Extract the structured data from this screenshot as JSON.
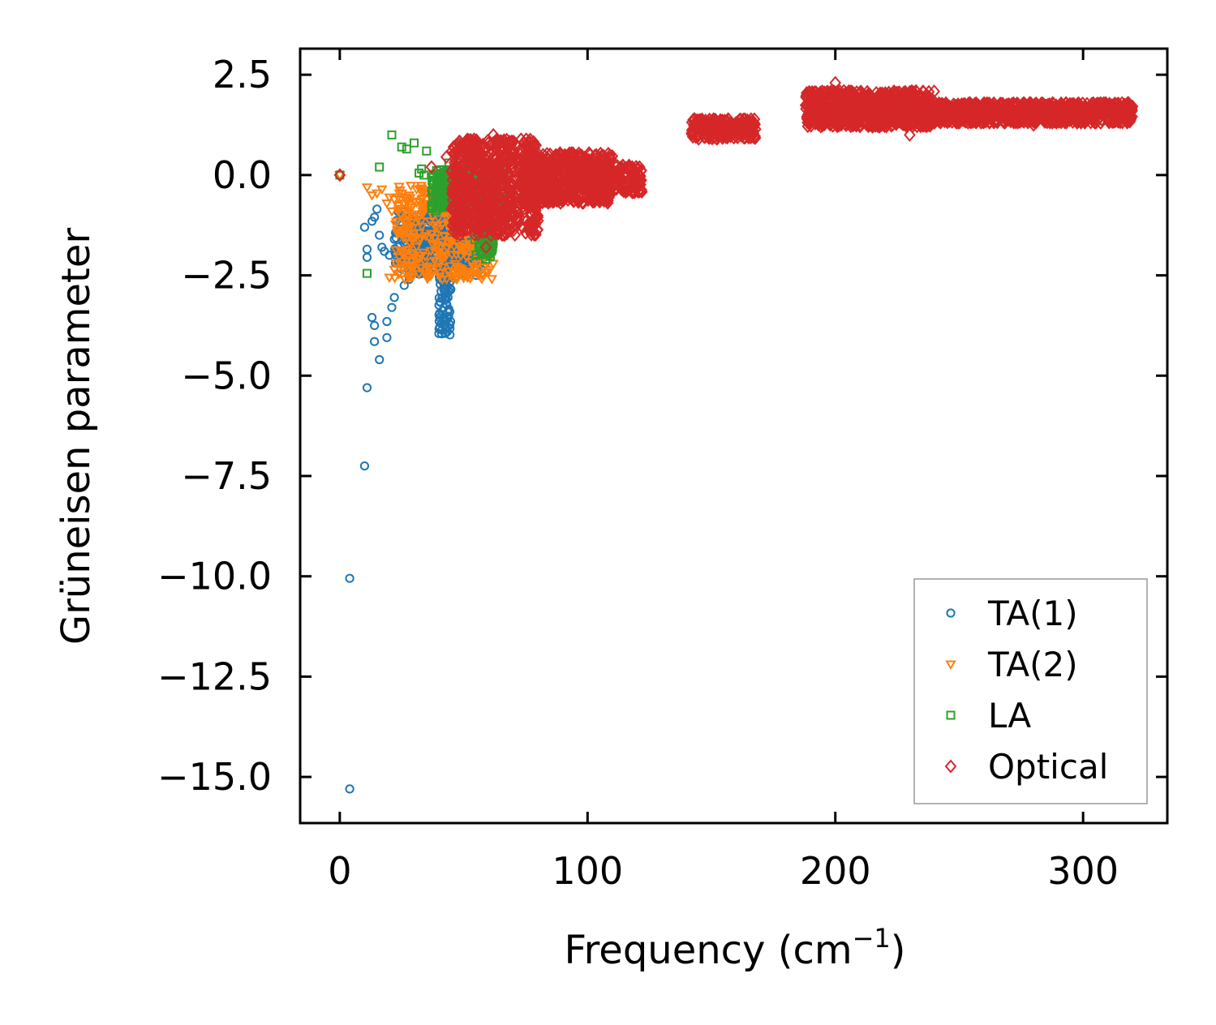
{
  "chart_data": {
    "type": "scatter",
    "title": "",
    "xlabel": "Frequency (cm",
    "xlabel_sup": "−1",
    "xlabel_end": ")",
    "ylabel": "Grüneisen parameter",
    "xlim": [
      -16,
      334
    ],
    "ylim": [
      -16.15,
      3.15
    ],
    "xticks": [
      0,
      100,
      200,
      300
    ],
    "xtick_labels": [
      "0",
      "100",
      "200",
      "300"
    ],
    "yticks": [
      2.5,
      0.0,
      -2.5,
      -5.0,
      -7.5,
      -10.0,
      -12.5,
      -15.0
    ],
    "ytick_labels": [
      "2.5",
      "0.0",
      "−2.5",
      "−5.0",
      "−7.5",
      "−10.0",
      "−12.5",
      "−15.0"
    ],
    "legend": {
      "position": "lower-right",
      "entries": [
        "TA(1)",
        "TA(2)",
        "LA",
        "Optical"
      ]
    },
    "series": [
      {
        "name": "TA(1)",
        "marker": "circle",
        "color": "#1f77b4",
        "points": [
          [
            0,
            0
          ],
          [
            4,
            -15.3
          ],
          [
            4,
            -10.05
          ],
          [
            10,
            -7.25
          ],
          [
            11,
            -5.3
          ],
          [
            16,
            -4.6
          ],
          [
            14,
            -4.15
          ],
          [
            19,
            -4.05
          ],
          [
            14,
            -3.75
          ],
          [
            19,
            -3.65
          ],
          [
            13,
            -3.55
          ],
          [
            21,
            -3.3
          ],
          [
            22,
            -3.05
          ],
          [
            26,
            -2.75
          ],
          [
            28,
            -2.6
          ],
          [
            29,
            -2.45
          ],
          [
            10,
            -1.3
          ],
          [
            11,
            -1.85
          ],
          [
            11,
            -2.05
          ],
          [
            13,
            -1.15
          ],
          [
            14,
            -1.05
          ],
          [
            15,
            -0.85
          ],
          [
            16,
            -1.5
          ],
          [
            17,
            -1.8
          ],
          [
            18,
            -1.9
          ],
          [
            20,
            -2.0
          ],
          [
            22,
            -1.6
          ],
          [
            24,
            -1.2
          ],
          [
            26,
            -0.9
          ],
          [
            27,
            -1.35
          ],
          [
            29,
            -1.7
          ],
          [
            31,
            -1.95
          ],
          [
            33,
            -1.4
          ],
          [
            35,
            -1.75
          ],
          [
            36,
            -1.1
          ],
          [
            38,
            -2.1
          ],
          [
            40,
            -3.95
          ],
          [
            41,
            -3.7
          ],
          [
            41,
            -3.5
          ],
          [
            42,
            -3.3
          ],
          [
            43,
            -3.1
          ],
          [
            42,
            -2.8
          ],
          [
            43,
            -2.6
          ],
          [
            44,
            -2.9
          ],
          [
            46,
            -2.2
          ],
          [
            48,
            -1.8
          ],
          [
            50,
            -1.5
          ],
          [
            52,
            -1.9
          ],
          [
            54,
            -2.3
          ],
          [
            55,
            -2.5
          ],
          [
            56,
            -1.3
          ],
          [
            58,
            -1.6
          ]
        ],
        "clusters": [
          {
            "x": [
              22,
              58
            ],
            "y": [
              -2.4,
              -0.9
            ],
            "n": 330
          },
          {
            "x": [
              40,
              45
            ],
            "y": [
              -4.0,
              -2.4
            ],
            "n": 60
          },
          {
            "x": [
              30,
              57
            ],
            "y": [
              -2.5,
              -1.2
            ],
            "n": 140
          }
        ]
      },
      {
        "name": "TA(2)",
        "marker": "triangle",
        "color": "#ff7f0e",
        "points": [
          [
            0,
            0
          ],
          [
            11,
            -0.3
          ],
          [
            13,
            -0.5
          ],
          [
            15,
            -0.45
          ],
          [
            17,
            -0.35
          ],
          [
            19,
            -0.7
          ],
          [
            20,
            -0.55
          ],
          [
            21,
            -0.9
          ],
          [
            22,
            -0.6
          ],
          [
            24,
            -0.45
          ],
          [
            26,
            -0.7
          ],
          [
            28,
            -0.5
          ],
          [
            30,
            -0.65
          ],
          [
            31,
            -0.35
          ],
          [
            33,
            -0.6
          ],
          [
            20,
            -2.55
          ],
          [
            22,
            -2.35
          ],
          [
            24,
            -2.05
          ],
          [
            27,
            -1.6
          ],
          [
            26,
            -2.0
          ],
          [
            29,
            -2.15
          ],
          [
            35,
            -2.45
          ],
          [
            45,
            -2.5
          ],
          [
            52,
            -2.45
          ],
          [
            58,
            -2.3
          ],
          [
            60,
            -1.8
          ],
          [
            60,
            -0.6
          ]
        ],
        "clusters": [
          {
            "x": [
              22,
              62
            ],
            "y": [
              -2.6,
              -0.25
            ],
            "n": 360
          }
        ]
      },
      {
        "name": "LA",
        "marker": "square",
        "color": "#2ca02c",
        "points": [
          [
            0,
            0
          ],
          [
            11,
            -2.45
          ],
          [
            16,
            0.2
          ],
          [
            21,
            1.0
          ],
          [
            25,
            0.7
          ],
          [
            27,
            0.65
          ],
          [
            30,
            0.8
          ],
          [
            32,
            0.05
          ],
          [
            33,
            0.15
          ],
          [
            34,
            0.0
          ],
          [
            35,
            0.6
          ],
          [
            44,
            0.3
          ],
          [
            48,
            -0.4
          ],
          [
            55,
            -2.0
          ],
          [
            60,
            -1.8
          ],
          [
            62,
            -0.8
          ],
          [
            65,
            -0.9
          ]
        ],
        "clusters": [
          {
            "x": [
              37,
              67
            ],
            "y": [
              -0.9,
              0.15
            ],
            "n": 320
          },
          {
            "x": [
              54,
              62
            ],
            "y": [
              -2.1,
              -0.8
            ],
            "n": 70
          }
        ]
      },
      {
        "name": "Optical",
        "marker": "diamond",
        "color": "#d62728",
        "points": [
          [
            0,
            0
          ],
          [
            37,
            0.2
          ],
          [
            43,
            0.45
          ],
          [
            53,
            0.7
          ],
          [
            62,
            1.0
          ],
          [
            66,
            0.7
          ],
          [
            57,
            -0.3
          ],
          [
            58,
            -1.1
          ],
          [
            59,
            -1.8
          ],
          [
            61,
            -1.5
          ],
          [
            63,
            -1.2
          ],
          [
            65,
            -0.9
          ],
          [
            70,
            -0.6
          ],
          [
            75,
            -0.4
          ],
          [
            80,
            -0.2
          ],
          [
            90,
            -0.25
          ],
          [
            100,
            -0.35
          ],
          [
            110,
            -0.3
          ],
          [
            118,
            0.2
          ],
          [
            121,
            0.2
          ],
          [
            190,
            1.9
          ],
          [
            200,
            2.3
          ],
          [
            230,
            1.0
          ],
          [
            240,
            1.3
          ],
          [
            280,
            1.25
          ],
          [
            318,
            1.35
          ]
        ],
        "clusters": [
          {
            "x": [
              45,
              80
            ],
            "y": [
              -1.5,
              0.9
            ],
            "n": 700
          },
          {
            "x": [
              75,
              110
            ],
            "y": [
              -0.7,
              0.55
            ],
            "n": 600
          },
          {
            "x": [
              105,
              122
            ],
            "y": [
              -0.45,
              0.25
            ],
            "n": 140
          },
          {
            "x": [
              142,
              168
            ],
            "y": [
              0.9,
              1.4
            ],
            "n": 240
          },
          {
            "x": [
              188,
              240
            ],
            "y": [
              1.2,
              2.1
            ],
            "n": 800
          },
          {
            "x": [
              240,
              320
            ],
            "y": [
              1.3,
              1.8
            ],
            "n": 900
          }
        ]
      }
    ]
  }
}
